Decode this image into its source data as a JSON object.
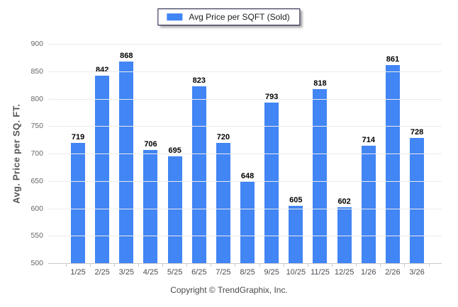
{
  "legend": {
    "label": "Avg Price per SQFT (Sold)"
  },
  "footer": {
    "copyright": "Copyright © TrendGraphix, Inc."
  },
  "colors": {
    "bar": "#4285f4",
    "gridline": "#ebebeb",
    "axis_line": "#c9c9c9",
    "value_label": "#000000",
    "tick_label": "#666666",
    "axis_title": "#555555"
  },
  "chart_data": {
    "type": "bar",
    "title": "",
    "series_name": "Avg Price per SQFT (Sold)",
    "categories": [
      "1/25",
      "2/25",
      "3/25",
      "4/25",
      "5/25",
      "6/25",
      "7/25",
      "8/25",
      "9/25",
      "10/25",
      "11/25",
      "12/25",
      "1/26",
      "2/26",
      "3/26"
    ],
    "values": [
      719,
      842,
      868,
      706,
      695,
      823,
      720,
      648,
      793,
      605,
      818,
      602,
      714,
      861,
      728
    ],
    "xlabel": "",
    "ylabel": "Avg. Price per SQ. FT.",
    "ylim": [
      500,
      900
    ],
    "ytick_step": 50,
    "grid": "horizontal",
    "legend_position": "top-center",
    "bar_labels": true
  }
}
